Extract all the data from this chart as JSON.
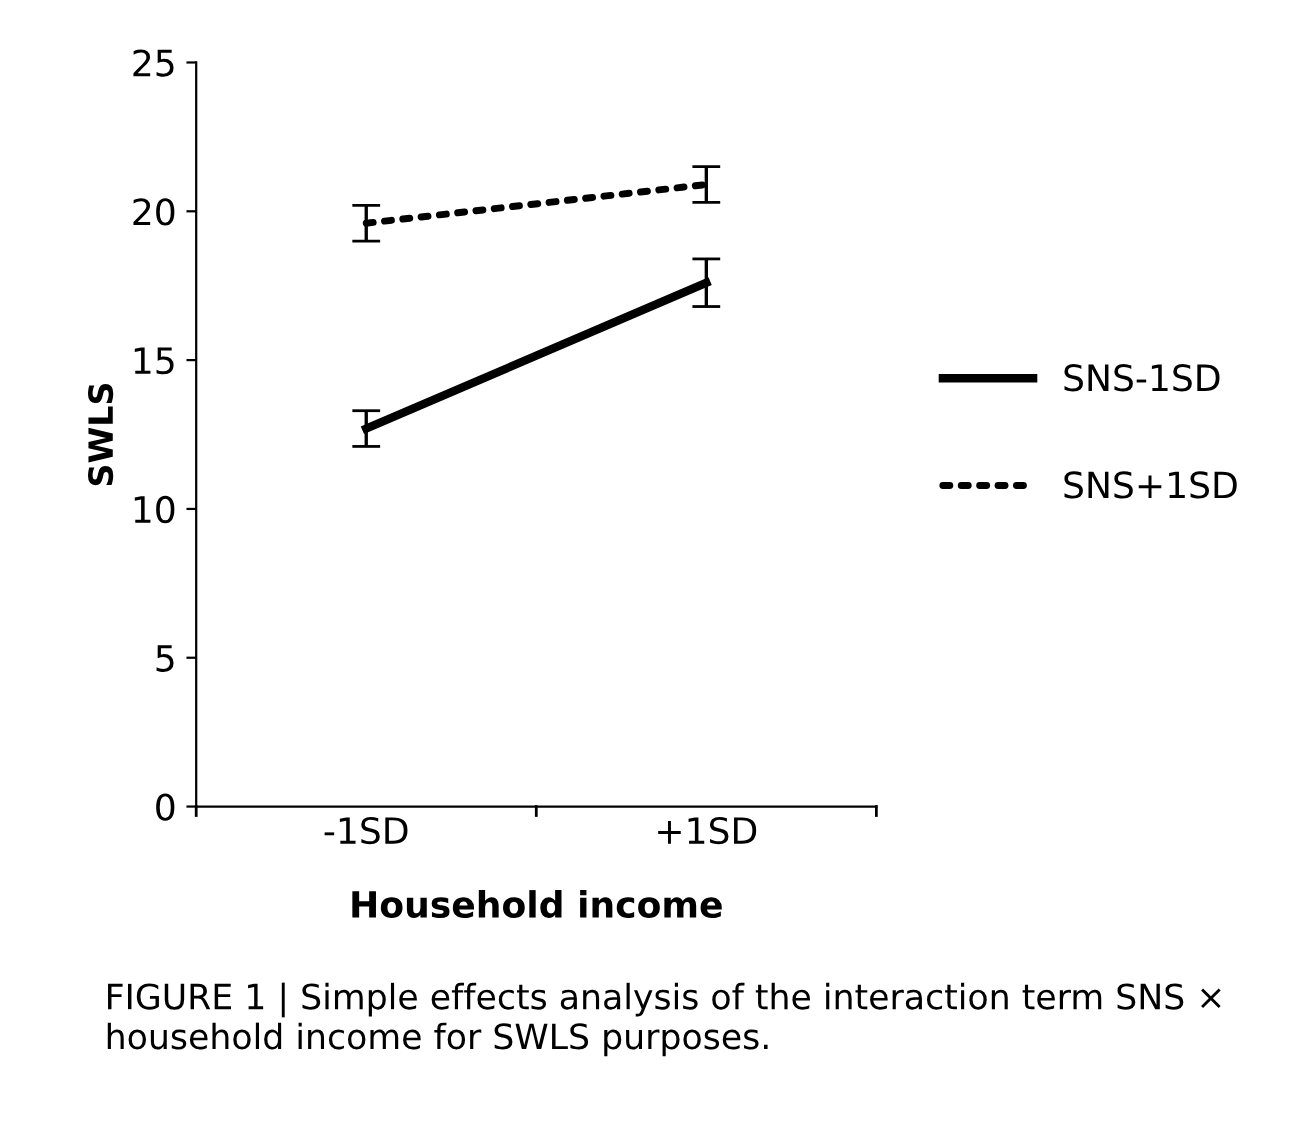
{
  "chart_data": {
    "type": "line",
    "xlabel": "Household income",
    "ylabel": "SWLS",
    "categories": [
      "-1SD",
      "+1SD"
    ],
    "series": [
      {
        "name": "SNS-1SD",
        "color": "#000000",
        "values": [
          12.7,
          17.6
        ],
        "errors": [
          0.6,
          0.8
        ],
        "line_style": "solid"
      },
      {
        "name": "SNS+1SD",
        "color": "#000000",
        "values": [
          19.6,
          20.9
        ],
        "errors": [
          0.6,
          0.6
        ],
        "line_style": "dotted"
      }
    ],
    "ylim": [
      0,
      25
    ],
    "yticks": [
      0,
      5,
      10,
      15,
      20,
      25
    ],
    "grid": false,
    "legend": "right",
    "marker": "none",
    "annotations": [
      "FIGURE 1 | Simple effects analysis of the interaction term SNS × household income for SWLS purposes."
    ]
  }
}
